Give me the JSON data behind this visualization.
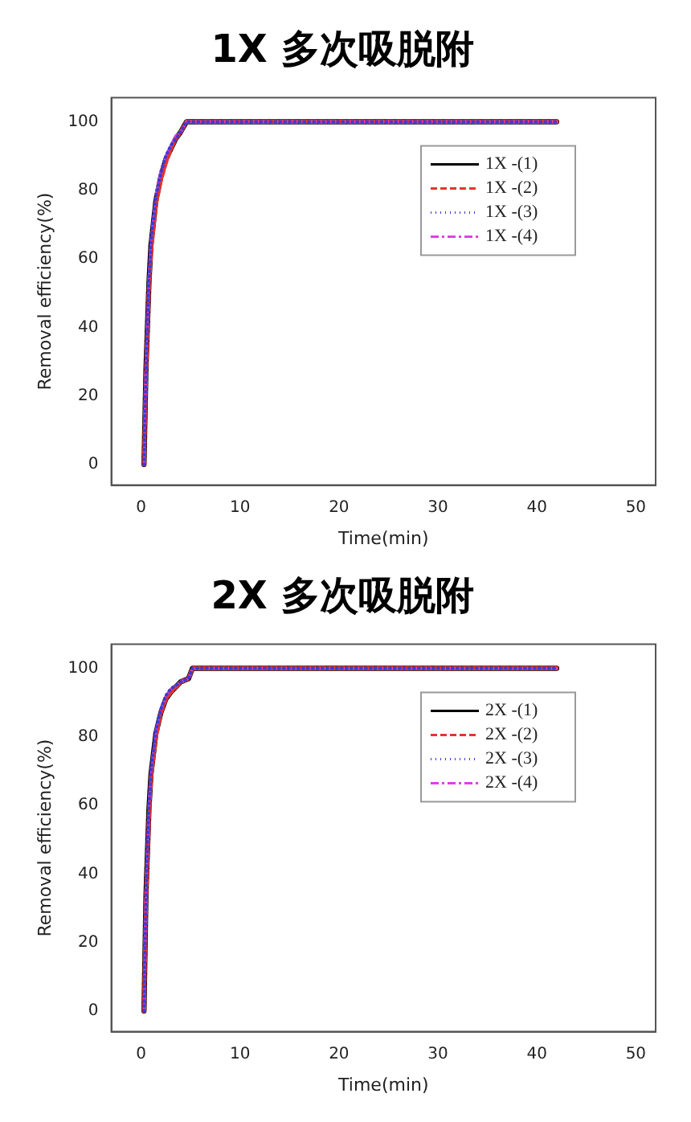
{
  "chart_data": [
    {
      "type": "line",
      "title": "1X 多次吸脱附",
      "xlabel": "Time(min)",
      "ylabel": "Removal efficiency(%)",
      "xlim": [
        -3,
        52
      ],
      "ylim": [
        -6,
        107
      ],
      "xticks": [
        0,
        10,
        20,
        30,
        40,
        50
      ],
      "yticks": [
        0,
        20,
        40,
        60,
        80,
        100
      ],
      "grid": false,
      "legend": "top right",
      "marker": "none",
      "series": [
        {
          "name": "1X -(1)",
          "color": "#000000",
          "line_style": "solid",
          "x": [
            0.3,
            0.5,
            0.8,
            1,
            1.5,
            2,
            2.5,
            3,
            3.5,
            4,
            4.6,
            42
          ],
          "values": [
            0,
            28,
            53,
            64,
            77,
            84,
            89,
            92,
            95,
            97,
            100,
            100
          ]
        },
        {
          "name": "1X -(2)",
          "color": "#e8332b",
          "line_style": "dashed",
          "x": [
            0.3,
            0.5,
            0.8,
            1,
            1.5,
            2,
            2.5,
            3,
            3.5,
            4,
            4.6,
            42
          ],
          "values": [
            0,
            27,
            52,
            62,
            76,
            83,
            88,
            92,
            95,
            97,
            100,
            100
          ]
        },
        {
          "name": "1X -(3)",
          "color": "#3b3bd8",
          "line_style": "dotted",
          "x": [
            0.3,
            0.5,
            0.8,
            1,
            1.5,
            2,
            2.5,
            3,
            3.5,
            4,
            4.6,
            42
          ],
          "values": [
            0,
            29,
            54,
            65,
            78,
            85,
            90,
            93,
            95,
            97,
            100,
            100
          ]
        },
        {
          "name": "1X -(4)",
          "color": "#e040e0",
          "line_style": "dashdot",
          "x": [
            0.3,
            0.5,
            0.8,
            1,
            1.5,
            2,
            2.5,
            3,
            3.5,
            4,
            4.6,
            42
          ],
          "values": [
            0,
            30,
            55,
            66,
            79,
            86,
            90,
            93,
            96,
            97,
            100,
            100
          ]
        }
      ]
    },
    {
      "type": "line",
      "title": "2X 多次吸脱附",
      "xlabel": "Time(min)",
      "ylabel": "Removal efficiency(%)",
      "xlim": [
        -3,
        52
      ],
      "ylim": [
        -6,
        107
      ],
      "xticks": [
        0,
        10,
        20,
        30,
        40,
        50
      ],
      "yticks": [
        0,
        20,
        40,
        60,
        80,
        100
      ],
      "grid": false,
      "legend": "top right",
      "marker": "none",
      "series": [
        {
          "name": "2X -(1)",
          "color": "#000000",
          "line_style": "solid",
          "x": [
            0.3,
            0.5,
            0.8,
            1,
            1.5,
            2,
            2.5,
            3,
            4,
            4.8,
            5.2,
            42
          ],
          "values": [
            0,
            34,
            59,
            69,
            81,
            87,
            91,
            93,
            96,
            97,
            100,
            100
          ]
        },
        {
          "name": "2X -(2)",
          "color": "#e8332b",
          "line_style": "dashed",
          "x": [
            0.3,
            0.5,
            0.8,
            1,
            1.5,
            2,
            2.5,
            3,
            4,
            4.8,
            5.2,
            42
          ],
          "values": [
            0,
            33,
            57,
            68,
            80,
            87,
            91,
            93,
            96,
            97,
            100,
            100
          ]
        },
        {
          "name": "2X -(3)",
          "color": "#3b3bd8",
          "line_style": "dotted",
          "x": [
            0.3,
            0.5,
            0.8,
            1,
            1.5,
            2,
            2.5,
            3,
            4,
            4.8,
            5.2,
            42
          ],
          "values": [
            0,
            35,
            60,
            70,
            82,
            88,
            92,
            94,
            96,
            97,
            100,
            100
          ]
        },
        {
          "name": "2X -(4)",
          "color": "#e040e0",
          "line_style": "dashdot",
          "x": [
            0.3,
            0.5,
            0.8,
            1,
            1.5,
            2,
            2.5,
            3,
            4,
            4.8,
            5.2,
            42
          ],
          "values": [
            0,
            35,
            60,
            70,
            82,
            88,
            92,
            94,
            96,
            97,
            100,
            100
          ]
        }
      ]
    }
  ]
}
